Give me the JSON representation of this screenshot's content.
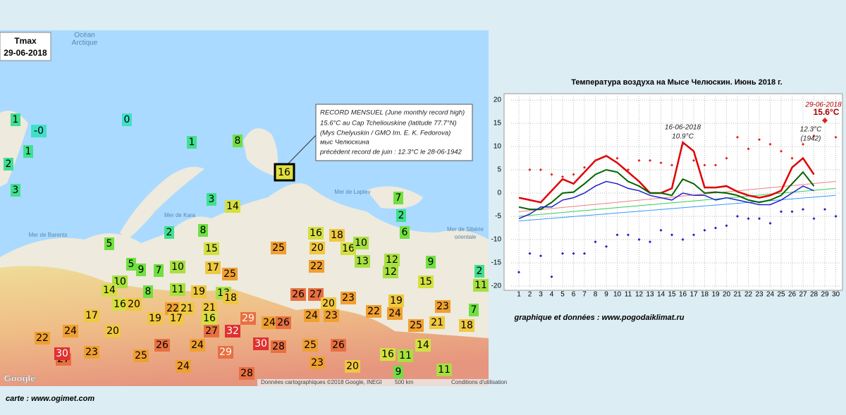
{
  "map": {
    "title": "Tmax",
    "date": "29-06-2018",
    "ocean": [
      "Océan",
      "Arctique"
    ],
    "seas": [
      "Mer de Barents",
      "Mer de Kara",
      "Mer de Laptev",
      "Mer de Sibérie",
      "orientale"
    ],
    "stations": [
      0,
      0,
      1,
      1,
      2,
      3,
      1,
      8,
      3,
      14,
      7,
      2,
      6,
      2,
      8,
      5,
      15,
      16,
      18,
      16,
      10,
      25,
      20,
      13,
      12,
      9,
      5,
      9,
      7,
      10,
      17,
      25,
      22,
      12,
      15,
      10,
      14,
      8,
      11,
      19,
      13,
      18,
      26,
      27,
      20,
      23,
      19,
      23,
      21,
      16,
      29,
      24,
      26,
      24,
      23,
      22,
      24,
      25,
      21,
      18,
      16,
      20,
      22,
      21,
      19,
      17,
      17,
      30,
      28,
      25,
      26,
      32,
      27,
      29,
      24,
      26,
      25,
      23,
      20,
      16,
      11,
      14,
      9,
      11,
      7,
      11,
      2,
      20,
      24,
      22,
      23,
      27,
      24,
      28,
      30
    ],
    "highlight": 16,
    "annotation": [
      "RECORD MENSUEL (June monthly record high)",
      "15.6°C au Cap Tcheliouskine (latitude 77.7°N)",
      "(Mys Chelyuskin / GMO Im. E. K. Fedorova)",
      "мыс Челюскина",
      "précédent record de juin : 12.3°C le 28-06-1942"
    ],
    "google": "Google",
    "attribution": "Données cartographiques ©2018 Google, INEGI",
    "scale": "500 km",
    "terms": "Conditions d'utilisation",
    "credit": "carte : www.ogimet.com"
  },
  "chart_data": {
    "type": "line",
    "title": "Температура воздуха на Мысе Челюскин. Июнь 2018 г.",
    "categories": [
      "1",
      "2",
      "3",
      "4",
      "5",
      "6",
      "7",
      "8",
      "9",
      "10",
      "11",
      "12",
      "13",
      "14",
      "15",
      "16",
      "17",
      "18",
      "19",
      "20",
      "21",
      "22",
      "23",
      "24",
      "25",
      "26",
      "27",
      "28",
      "29",
      "30"
    ],
    "ylim": [
      -20,
      20
    ],
    "yticks": [
      -20,
      -15,
      -10,
      -5,
      0,
      5,
      10,
      15,
      20
    ],
    "grid": true,
    "series": [
      {
        "color": "#e00000",
        "width": 2.5,
        "values": [
          -1,
          -1.5,
          -2,
          0.5,
          3,
          2,
          4.5,
          7,
          8,
          6.5,
          4.5,
          2.5,
          0,
          0,
          1,
          10.9,
          9,
          1.2,
          1.2,
          1.5,
          0.3,
          -0.5,
          -1,
          -0.5,
          0.5,
          5.5,
          7.5,
          4,
          null,
          null
        ]
      },
      {
        "color": "#006400",
        "width": 2,
        "values": [
          -3,
          -3.5,
          -3.5,
          -2,
          0,
          0.2,
          2,
          4,
          5,
          4.5,
          2.5,
          1.5,
          0,
          0,
          -0.5,
          3,
          2,
          0,
          0.2,
          0,
          -0.5,
          -1.5,
          -2,
          -1.5,
          -0.5,
          2,
          4.5,
          1.5,
          null,
          null
        ]
      },
      {
        "color": "#2020c8",
        "width": 1.5,
        "values": [
          -5.5,
          -4.5,
          -3,
          -3,
          -1.5,
          -1,
          0,
          1.5,
          2.5,
          2,
          1,
          0.5,
          -0.5,
          -1,
          -1.5,
          0,
          -0.5,
          -0.5,
          -1.5,
          -1,
          -1.5,
          -2,
          -2.5,
          -2.5,
          -1.5,
          0,
          1.5,
          0.5,
          null,
          null
        ]
      }
    ],
    "norms": [
      {
        "color": "#f08080",
        "x": [
          1,
          30
        ],
        "values": [
          -4,
          2.5
        ]
      },
      {
        "color": "#33cc55",
        "x": [
          1,
          30
        ],
        "values": [
          -5,
          1
        ]
      },
      {
        "color": "#3399ff",
        "x": [
          1,
          30
        ],
        "values": [
          -6,
          -0.5
        ]
      }
    ],
    "records": [
      {
        "color": "#e02020",
        "values": [
          null,
          5,
          5,
          4,
          3.5,
          4,
          5.5,
          7,
          8,
          7.5,
          5,
          7,
          7,
          6.5,
          6,
          10.5,
          7,
          6,
          6,
          7.5,
          12,
          9.5,
          11.5,
          10.5,
          9,
          7.5,
          10.5,
          12.3,
          15.6,
          12
        ]
      },
      {
        "color": "#2020c0",
        "values": [
          -17,
          -13,
          -13.5,
          -18,
          -13,
          -13,
          -13,
          -10.5,
          -11.5,
          -9,
          -9,
          -10,
          -10.5,
          -8,
          -9,
          -10,
          -9,
          -8,
          -7.5,
          -7,
          -5,
          -5.5,
          -5.5,
          -6.5,
          -4,
          -4,
          -3.5,
          -5.5,
          -3.5,
          -5
        ]
      }
    ],
    "annotations": [
      "16-06-2018",
      "10.9°C",
      "29-06-2018",
      "15.6°C",
      "12.3°C",
      "(1942)"
    ],
    "source": "graphique et données : www.pogodaiklimat.ru"
  }
}
